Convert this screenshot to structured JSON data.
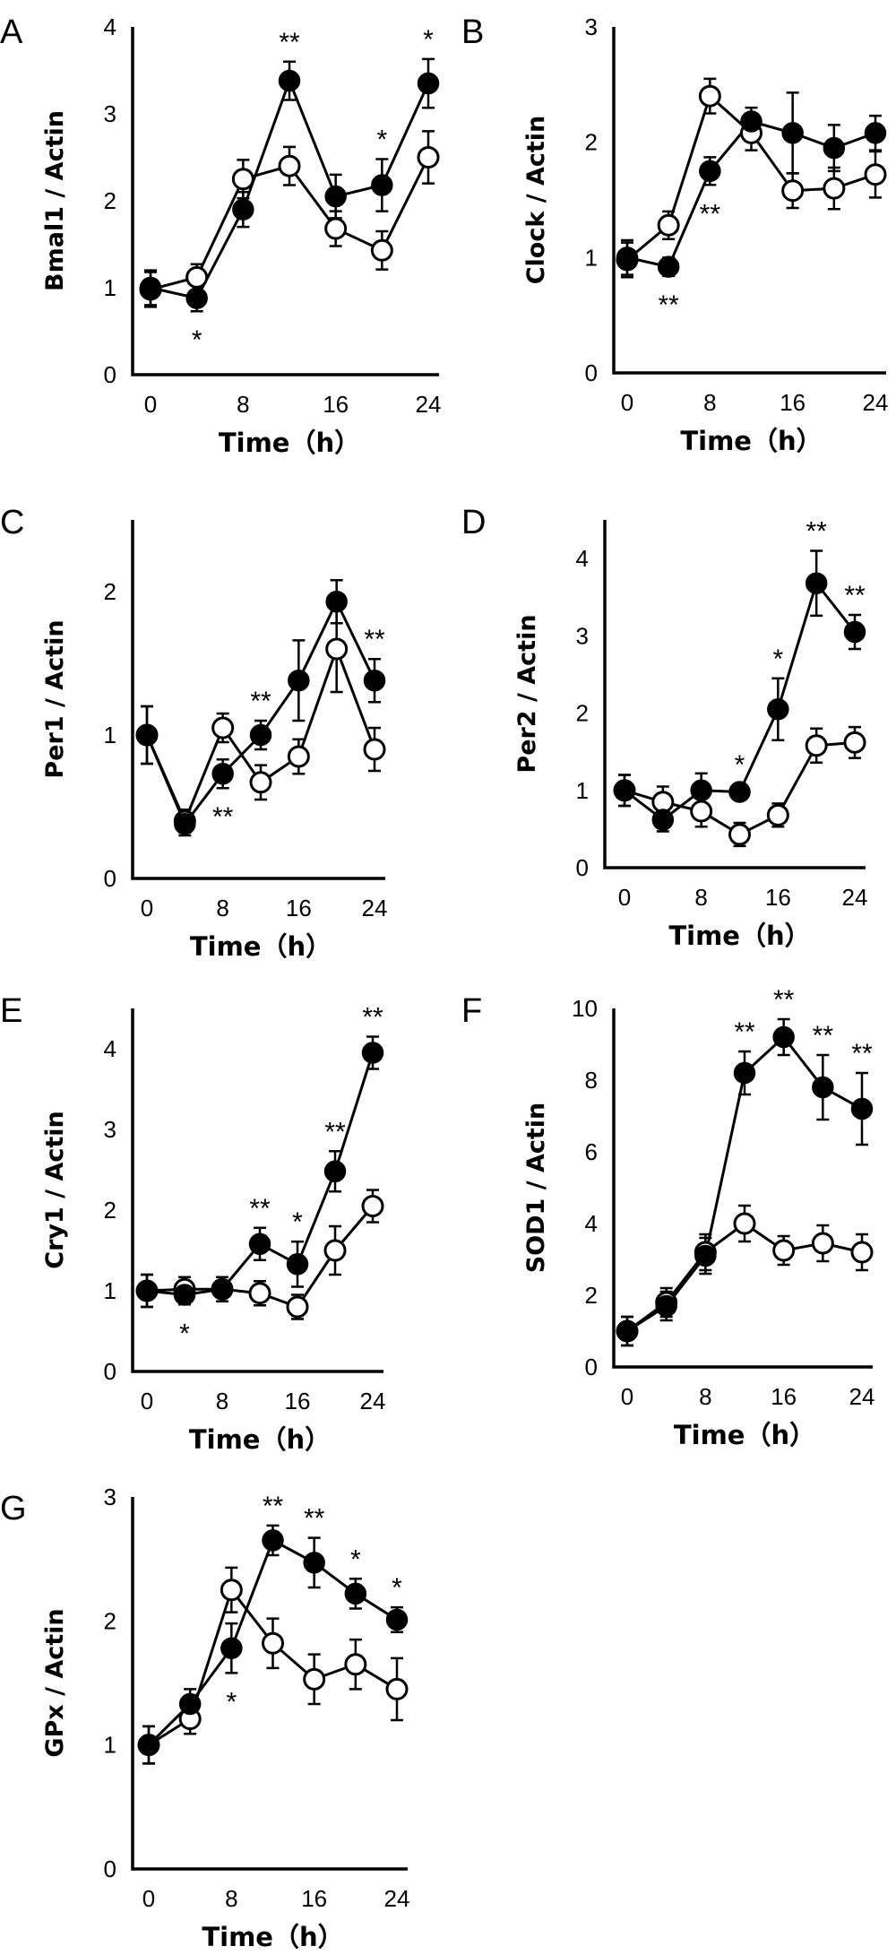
{
  "chart_data": [
    {
      "panel": "A",
      "type": "line",
      "ylabel": "Bmal1 / Actin",
      "xlabel": "Time（h）",
      "x": [
        0,
        4,
        8,
        12,
        16,
        20,
        24
      ],
      "xticks": [
        0,
        8,
        16,
        24
      ],
      "ylim": [
        0,
        4
      ],
      "yticks": [
        0,
        1,
        2,
        3,
        4
      ],
      "series": [
        {
          "marker": "filled",
          "values": [
            1.0,
            0.88,
            1.9,
            3.38,
            2.05,
            2.18,
            3.35
          ],
          "errors": [
            0.2,
            0.15,
            0.2,
            0.22,
            0.25,
            0.3,
            0.28
          ]
        },
        {
          "marker": "open",
          "values": [
            0.98,
            1.12,
            2.25,
            2.4,
            1.68,
            1.43,
            2.5
          ],
          "errors": [
            0.2,
            0.15,
            0.22,
            0.22,
            0.2,
            0.22,
            0.3
          ]
        }
      ],
      "annotations": [
        {
          "x": 4,
          "text": "*",
          "pos": "below"
        },
        {
          "x": 12,
          "text": "**",
          "pos": "above"
        },
        {
          "x": 20,
          "text": "*",
          "pos": "above"
        },
        {
          "x": 24,
          "text": "*",
          "pos": "above"
        }
      ]
    },
    {
      "panel": "B",
      "type": "line",
      "ylabel": "Clock / Actin",
      "xlabel": "Time（h）",
      "x": [
        0,
        4,
        8,
        12,
        16,
        20,
        24
      ],
      "xticks": [
        0,
        8,
        16,
        24
      ],
      "ylim": [
        0,
        3
      ],
      "yticks": [
        0,
        1,
        2,
        3
      ],
      "series": [
        {
          "marker": "filled",
          "values": [
            1.0,
            0.92,
            1.75,
            2.18,
            2.08,
            1.95,
            2.08
          ],
          "errors": [
            0.15,
            0.08,
            0.12,
            0.12,
            0.35,
            0.2,
            0.15
          ]
        },
        {
          "marker": "open",
          "values": [
            0.98,
            1.28,
            2.4,
            2.08,
            1.58,
            1.6,
            1.72
          ],
          "errors": [
            0.15,
            0.12,
            0.15,
            0.15,
            0.15,
            0.18,
            0.2
          ]
        }
      ],
      "annotations": [
        {
          "x": 4,
          "text": "**",
          "pos": "below"
        },
        {
          "x": 8,
          "text": "**",
          "pos": "below"
        }
      ]
    },
    {
      "panel": "C",
      "type": "line",
      "ylabel": "Per1 / Actin",
      "xlabel": "Time（h）",
      "x": [
        0,
        4,
        8,
        12,
        16,
        20,
        24
      ],
      "xticks": [
        0,
        8,
        16,
        24
      ],
      "ylim": [
        0,
        2.5
      ],
      "yticks": [
        0,
        1,
        2
      ],
      "series": [
        {
          "marker": "filled",
          "values": [
            1.0,
            0.38,
            0.73,
            1.0,
            1.38,
            1.93,
            1.38
          ],
          "errors": [
            0.2,
            0.08,
            0.1,
            0.1,
            0.28,
            0.15,
            0.15
          ]
        },
        {
          "marker": "open",
          "values": [
            1.0,
            0.4,
            1.05,
            0.67,
            0.85,
            1.6,
            0.9
          ],
          "errors": [
            0.2,
            0.08,
            0.1,
            0.12,
            0.12,
            0.3,
            0.15
          ]
        }
      ],
      "annotations": [
        {
          "x": 8,
          "text": "**",
          "pos": "below"
        },
        {
          "x": 12,
          "text": "**",
          "pos": "above"
        },
        {
          "x": 24,
          "text": "**",
          "pos": "above"
        }
      ]
    },
    {
      "panel": "D",
      "type": "line",
      "ylabel": "Per2 / Actin",
      "xlabel": "Time（h）",
      "x": [
        0,
        4,
        8,
        12,
        16,
        20,
        24
      ],
      "xticks": [
        0,
        8,
        16,
        24
      ],
      "ylim": [
        0,
        4.5
      ],
      "yticks": [
        0,
        1,
        2,
        3,
        4
      ],
      "series": [
        {
          "marker": "filled",
          "values": [
            1.0,
            0.62,
            1.0,
            0.98,
            2.05,
            3.68,
            3.05
          ],
          "errors": [
            0.2,
            0.15,
            0.22,
            0.1,
            0.4,
            0.42,
            0.22
          ]
        },
        {
          "marker": "open",
          "values": [
            1.0,
            0.85,
            0.73,
            0.43,
            0.68,
            1.58,
            1.62
          ],
          "errors": [
            0.2,
            0.2,
            0.2,
            0.15,
            0.15,
            0.22,
            0.2
          ]
        }
      ],
      "annotations": [
        {
          "x": 12,
          "text": "*",
          "pos": "above"
        },
        {
          "x": 16,
          "text": "*",
          "pos": "above"
        },
        {
          "x": 20,
          "text": "**",
          "pos": "above"
        },
        {
          "x": 24,
          "text": "**",
          "pos": "above"
        }
      ]
    },
    {
      "panel": "E",
      "type": "line",
      "ylabel": "Cry1 / Actin",
      "xlabel": "Time（h）",
      "x": [
        0,
        4,
        8,
        12,
        16,
        20,
        24
      ],
      "xticks": [
        0,
        8,
        16,
        24
      ],
      "ylim": [
        0,
        4.5
      ],
      "yticks": [
        0,
        1,
        2,
        3,
        4
      ],
      "series": [
        {
          "marker": "filled",
          "values": [
            1.0,
            0.95,
            1.02,
            1.58,
            1.33,
            2.48,
            3.95
          ],
          "errors": [
            0.2,
            0.12,
            0.15,
            0.2,
            0.28,
            0.25,
            0.2
          ]
        },
        {
          "marker": "open",
          "values": [
            1.0,
            1.02,
            1.02,
            0.97,
            0.8,
            1.5,
            2.05
          ],
          "errors": [
            0.2,
            0.15,
            0.15,
            0.15,
            0.15,
            0.3,
            0.2
          ]
        }
      ],
      "annotations": [
        {
          "x": 4,
          "text": "*",
          "pos": "below"
        },
        {
          "x": 12,
          "text": "**",
          "pos": "above"
        },
        {
          "x": 16,
          "text": "*",
          "pos": "above"
        },
        {
          "x": 20,
          "text": "**",
          "pos": "above"
        },
        {
          "x": 24,
          "text": "**",
          "pos": "above"
        }
      ]
    },
    {
      "panel": "F",
      "type": "line",
      "ylabel": "SOD1 / Actin",
      "xlabel": "Time（h）",
      "x": [
        0,
        4,
        8,
        12,
        16,
        20,
        24
      ],
      "xticks": [
        0,
        8,
        16,
        24
      ],
      "ylim": [
        0,
        10
      ],
      "yticks": [
        0,
        2,
        4,
        6,
        8,
        10
      ],
      "series": [
        {
          "marker": "filled",
          "values": [
            1.0,
            1.7,
            3.1,
            8.2,
            9.2,
            7.8,
            7.2
          ],
          "errors": [
            0.4,
            0.4,
            0.5,
            0.6,
            0.5,
            0.9,
            1.0
          ]
        },
        {
          "marker": "open",
          "values": [
            1.0,
            1.8,
            3.2,
            4.0,
            3.25,
            3.45,
            3.2
          ],
          "errors": [
            0.4,
            0.4,
            0.5,
            0.5,
            0.4,
            0.5,
            0.5
          ]
        }
      ],
      "annotations": [
        {
          "x": 12,
          "text": "**",
          "pos": "above"
        },
        {
          "x": 16,
          "text": "**",
          "pos": "above"
        },
        {
          "x": 20,
          "text": "**",
          "pos": "above"
        },
        {
          "x": 24,
          "text": "**",
          "pos": "above"
        }
      ]
    },
    {
      "panel": "G",
      "type": "line",
      "ylabel": "GPx / Actin",
      "xlabel": "Time（h）",
      "x": [
        0,
        4,
        8,
        12,
        16,
        20,
        24
      ],
      "xticks": [
        0,
        8,
        16,
        24
      ],
      "ylim": [
        0,
        3
      ],
      "yticks": [
        0,
        1,
        2,
        3
      ],
      "series": [
        {
          "marker": "filled",
          "values": [
            1.0,
            1.33,
            1.78,
            2.65,
            2.47,
            2.22,
            2.01
          ],
          "errors": [
            0.15,
            0.12,
            0.2,
            0.12,
            0.2,
            0.12,
            0.1
          ]
        },
        {
          "marker": "open",
          "values": [
            1.0,
            1.21,
            2.25,
            1.82,
            1.53,
            1.65,
            1.45
          ],
          "errors": [
            0.15,
            0.12,
            0.18,
            0.2,
            0.2,
            0.2,
            0.25
          ]
        }
      ],
      "annotations": [
        {
          "x": 8,
          "text": "*",
          "pos": "below"
        },
        {
          "x": 12,
          "text": "**",
          "pos": "above"
        },
        {
          "x": 16,
          "text": "**",
          "pos": "above"
        },
        {
          "x": 20,
          "text": "*",
          "pos": "above"
        },
        {
          "x": 24,
          "text": "*",
          "pos": "above"
        }
      ]
    }
  ]
}
